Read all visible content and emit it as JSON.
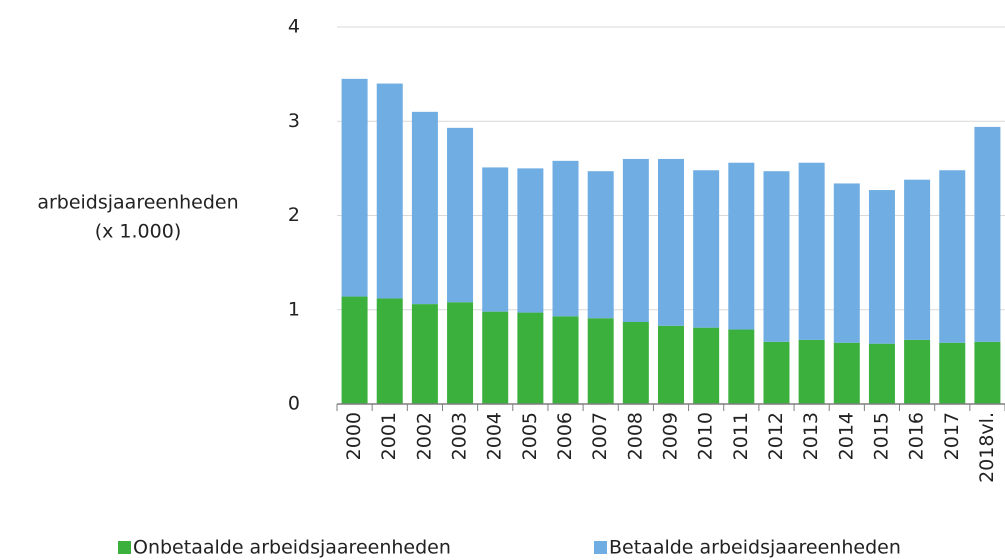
{
  "chart_data": {
    "type": "stacked_bar",
    "ylabel": [
      "arbeidsjaareenheden",
      "(x 1.000)"
    ],
    "categories": [
      "2000",
      "2001",
      "2002",
      "2003",
      "2004",
      "2005",
      "2006",
      "2007",
      "2008",
      "2009",
      "2010",
      "2011",
      "2012",
      "2013",
      "2014",
      "2015",
      "2016",
      "2017",
      "2018vl."
    ],
    "series": [
      {
        "name": "Onbetaalde arbeidsjaareenheden",
        "color": "#3cb03c",
        "values": [
          1.14,
          1.12,
          1.06,
          1.08,
          0.98,
          0.97,
          0.93,
          0.91,
          0.87,
          0.83,
          0.81,
          0.79,
          0.66,
          0.68,
          0.65,
          0.64,
          0.68,
          0.65,
          0.66
        ]
      },
      {
        "name": "Betaalde arbeidsjaareenheden",
        "color": "#6fade3",
        "values": [
          2.31,
          2.28,
          2.04,
          1.85,
          1.53,
          1.53,
          1.65,
          1.56,
          1.73,
          1.77,
          1.67,
          1.77,
          1.81,
          1.88,
          1.69,
          1.63,
          1.7,
          1.83,
          2.28
        ]
      }
    ],
    "ylim": [
      0,
      4
    ],
    "yticks": [
      0,
      1,
      2,
      3,
      4
    ],
    "grid": true,
    "legend": "bottom"
  }
}
